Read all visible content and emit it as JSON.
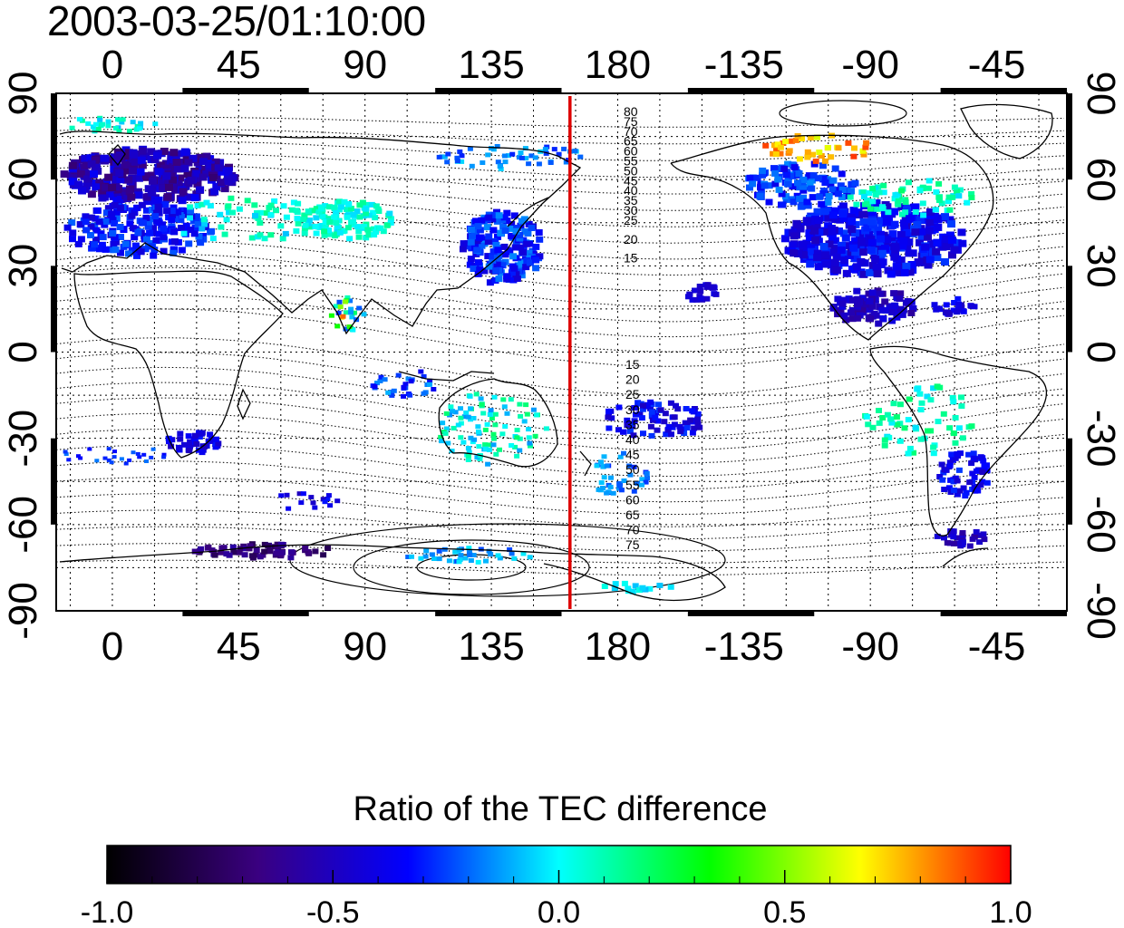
{
  "header": {
    "timestamp": "2003-03-25/01:10:00"
  },
  "map": {
    "lon_ticks_top": [
      "0",
      "45",
      "90",
      "135",
      "180",
      "-135",
      "-90",
      "-45"
    ],
    "lon_ticks_bottom": [
      "0",
      "45",
      "90",
      "135",
      "180",
      "-135",
      "-90",
      "-45"
    ],
    "lat_ticks_left": [
      "90",
      "60",
      "30",
      "0",
      "-30",
      "-60",
      "-90"
    ],
    "lat_ticks_right": [
      "90",
      "60",
      "30",
      "0",
      "-30",
      "-60",
      "-90"
    ],
    "meridian_marker_lon": 163,
    "meridian_marker_color": "#dd0000",
    "contour_labels_north": [
      "80",
      "75",
      "70",
      "65",
      "60",
      "55",
      "50",
      "45",
      "40",
      "35",
      "30",
      "25",
      "20",
      "15"
    ],
    "contour_labels_south": [
      "15",
      "20",
      "25",
      "30",
      "35",
      "40",
      "45",
      "50",
      "55",
      "60",
      "65",
      "70",
      "75"
    ]
  },
  "colorbar": {
    "title": "Ratio of the TEC difference",
    "tick_labels": [
      "-1.0",
      "-0.5",
      "0.0",
      "0.5",
      "1.0"
    ],
    "range": [
      -1.0,
      1.0
    ],
    "stops": [
      "#000000",
      "#3a0080",
      "#0000ff",
      "#00ffff",
      "#00ff00",
      "#ffff00",
      "#ff0000"
    ]
  }
}
